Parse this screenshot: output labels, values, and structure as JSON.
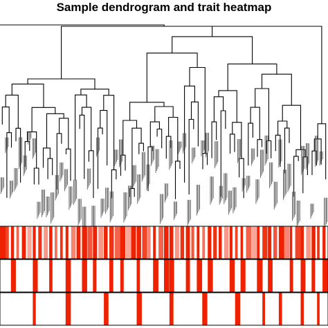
{
  "chart_data": {
    "type": "heatmap",
    "title": "Sample dendrogram and trait heatmap",
    "components": [
      "dendrogram",
      "trait-heatmap"
    ],
    "trait_rows": 3,
    "trait_color_scale": {
      "low": "#ffffff",
      "high": "#ee2200"
    },
    "trait_values": [
      [
        1,
        0.8,
        1,
        0.6,
        1,
        0.2,
        1,
        0.9,
        0.3,
        1,
        0.5,
        0.9,
        1,
        0.4,
        1,
        1,
        0.7,
        1,
        0.3,
        1,
        0.9,
        0.6,
        1,
        0.2,
        1,
        1,
        0.8,
        0.4,
        1,
        0.6,
        1,
        1,
        0.3,
        0.9,
        1,
        0.7,
        1,
        0.5,
        1,
        0.9,
        1,
        0.3,
        1,
        0.8,
        1,
        0.6,
        0.2,
        1,
        0.9,
        1,
        0.7,
        1,
        0.4,
        1,
        0.8,
        1,
        0.3,
        1,
        0.9,
        1
      ],
      [
        0,
        0,
        1,
        0,
        0,
        0,
        1,
        0,
        0,
        1,
        0,
        0,
        1,
        0,
        0,
        1,
        0,
        1,
        0,
        0,
        1,
        0,
        1,
        0,
        0,
        1,
        0,
        0,
        1,
        0,
        1,
        1,
        0,
        0,
        1,
        0,
        1,
        0,
        1,
        0,
        0,
        0,
        1,
        0,
        1,
        0,
        0,
        1,
        0,
        1,
        0,
        0,
        0,
        1,
        0,
        1,
        0,
        1,
        0,
        1
      ],
      [
        0,
        0,
        0,
        0,
        0,
        0,
        1,
        0,
        0,
        0,
        0,
        0,
        1,
        0,
        0,
        0,
        0,
        0,
        0,
        1,
        0,
        0,
        0,
        0,
        0,
        1,
        0,
        0,
        0,
        0,
        0,
        1,
        0,
        0,
        0,
        0,
        0,
        1,
        0,
        0,
        0,
        0,
        0,
        1,
        0,
        0,
        0,
        0,
        1,
        0,
        0,
        1,
        0,
        0,
        0,
        1,
        0,
        0,
        1,
        0
      ]
    ]
  }
}
